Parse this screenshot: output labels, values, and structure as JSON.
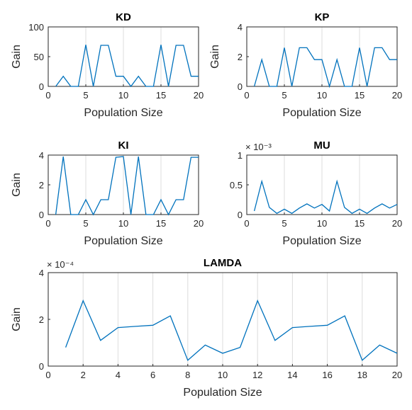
{
  "chart_data": [
    {
      "type": "line",
      "title": "KD",
      "xlabel": "Population Size",
      "ylabel": "Gain",
      "xlim": [
        0,
        20
      ],
      "ylim": [
        0,
        100
      ],
      "xticks": [
        "0",
        "5",
        "10",
        "15",
        "20"
      ],
      "yticks": [
        "0",
        "50",
        "100"
      ],
      "exponent": "",
      "grid": "x",
      "x": [
        1,
        2,
        3,
        4,
        5,
        6,
        7,
        8,
        9,
        10,
        11,
        12,
        13,
        14,
        15,
        16,
        17,
        18,
        19,
        20
      ],
      "series": [
        {
          "values": [
            0,
            17,
            0,
            0,
            70,
            0,
            69,
            69,
            17,
            17,
            0,
            17,
            0,
            0,
            70,
            0,
            69,
            69,
            17,
            17
          ]
        }
      ]
    },
    {
      "type": "line",
      "title": "KP",
      "xlabel": "Population Size",
      "ylabel": "Gain",
      "xlim": [
        0,
        20
      ],
      "ylim": [
        0,
        4
      ],
      "xticks": [
        "0",
        "5",
        "10",
        "15",
        "20"
      ],
      "yticks": [
        "0",
        "2",
        "4"
      ],
      "exponent": "",
      "grid": "x",
      "x": [
        1,
        2,
        3,
        4,
        5,
        6,
        7,
        8,
        9,
        10,
        11,
        12,
        13,
        14,
        15,
        16,
        17,
        18,
        19,
        20
      ],
      "series": [
        {
          "values": [
            0,
            1.8,
            0,
            0,
            2.6,
            0,
            2.6,
            2.6,
            1.8,
            1.8,
            0,
            1.8,
            0,
            0,
            2.6,
            0,
            2.6,
            2.6,
            1.8,
            1.8
          ]
        }
      ]
    },
    {
      "type": "line",
      "title": "KI",
      "xlabel": "Population Size",
      "ylabel": "Gain",
      "xlim": [
        0,
        20
      ],
      "ylim": [
        0,
        4
      ],
      "xticks": [
        "0",
        "5",
        "10",
        "15",
        "20"
      ],
      "yticks": [
        "0",
        "2",
        "4"
      ],
      "exponent": "",
      "grid": "x",
      "x": [
        1,
        2,
        3,
        4,
        5,
        6,
        7,
        8,
        9,
        10,
        11,
        12,
        13,
        14,
        15,
        16,
        17,
        18,
        19,
        20
      ],
      "series": [
        {
          "values": [
            0,
            3.9,
            0,
            0,
            1,
            0,
            1,
            1,
            3.85,
            3.9,
            0,
            3.9,
            0,
            0,
            1,
            0,
            1,
            1,
            3.85,
            3.85
          ]
        }
      ]
    },
    {
      "type": "line",
      "title": "MU",
      "xlabel": "Population Size",
      "ylabel": "",
      "xlim": [
        0,
        20
      ],
      "ylim": [
        0,
        1
      ],
      "xticks": [
        "0",
        "5",
        "10",
        "15",
        "20"
      ],
      "yticks": [
        "0",
        "0.5",
        "1"
      ],
      "exponent": "× 10⁻³",
      "grid": "x",
      "x": [
        1,
        2,
        3,
        4,
        5,
        6,
        7,
        8,
        9,
        10,
        11,
        12,
        13,
        14,
        15,
        16,
        17,
        18,
        19,
        20
      ],
      "series": [
        {
          "values": [
            0.06,
            0.56,
            0.12,
            0.02,
            0.09,
            0.02,
            0.11,
            0.18,
            0.11,
            0.17,
            0.06,
            0.56,
            0.12,
            0.02,
            0.09,
            0.02,
            0.11,
            0.18,
            0.11,
            0.17
          ]
        }
      ]
    },
    {
      "type": "line",
      "title": "LAMDA",
      "xlabel": "Population Size",
      "ylabel": "Gain",
      "xlim": [
        0,
        20
      ],
      "ylim": [
        0,
        4
      ],
      "xticks": [
        "0",
        "2",
        "4",
        "6",
        "8",
        "10",
        "12",
        "14",
        "16",
        "18",
        "20"
      ],
      "yticks": [
        "0",
        "2",
        "4"
      ],
      "exponent": "× 10⁻⁴",
      "grid": "x",
      "x": [
        1,
        2,
        3,
        4,
        5,
        6,
        7,
        8,
        9,
        10,
        11,
        12,
        13,
        14,
        15,
        16,
        17,
        18,
        19,
        20
      ],
      "series": [
        {
          "values": [
            0.8,
            2.8,
            1.1,
            1.65,
            1.7,
            1.75,
            2.15,
            0.25,
            0.9,
            0.55,
            0.8,
            2.8,
            1.1,
            1.65,
            1.7,
            1.75,
            2.15,
            0.25,
            0.9,
            0.55
          ]
        }
      ]
    }
  ]
}
